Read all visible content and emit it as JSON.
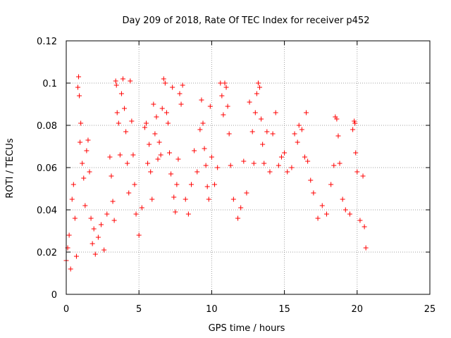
{
  "chart_data": {
    "type": "scatter",
    "title": "Day 209 of 2018, Rate Of TEC Index for receiver p452",
    "xlabel": "GPS time / hours",
    "ylabel": "ROTI / TECUs",
    "xlim": [
      0,
      25
    ],
    "ylim": [
      0,
      0.12
    ],
    "xticks": [
      0,
      5,
      10,
      15,
      20,
      25
    ],
    "xtick_labels": [
      "0",
      "5",
      "10",
      "15",
      "20",
      "25"
    ],
    "yticks": [
      0,
      0.02,
      0.04,
      0.06,
      0.08,
      0.1,
      0.12
    ],
    "ytick_labels": [
      "0",
      "0.02",
      "0.04",
      "0.06",
      "0.08",
      "0.1",
      "0.12"
    ],
    "grid": true,
    "marker": "plus",
    "color": "#ff0000",
    "series": [
      {
        "values": [
          [
            0.0,
            0.016
          ],
          [
            0.1,
            0.022
          ],
          [
            0.2,
            0.028
          ],
          [
            0.3,
            0.012
          ],
          [
            0.4,
            0.045
          ],
          [
            0.5,
            0.052
          ],
          [
            0.6,
            0.036
          ],
          [
            0.7,
            0.018
          ],
          [
            0.8,
            0.098
          ],
          [
            0.85,
            0.103
          ],
          [
            0.9,
            0.094
          ],
          [
            0.95,
            0.072
          ],
          [
            1.0,
            0.081
          ],
          [
            1.1,
            0.062
          ],
          [
            1.2,
            0.055
          ],
          [
            1.3,
            0.042
          ],
          [
            1.4,
            0.068
          ],
          [
            1.5,
            0.073
          ],
          [
            1.6,
            0.058
          ],
          [
            1.7,
            0.036
          ],
          [
            1.8,
            0.024
          ],
          [
            1.9,
            0.031
          ],
          [
            2.0,
            0.019
          ],
          [
            2.2,
            0.027
          ],
          [
            2.4,
            0.033
          ],
          [
            2.6,
            0.021
          ],
          [
            2.8,
            0.038
          ],
          [
            3.0,
            0.065
          ],
          [
            3.1,
            0.056
          ],
          [
            3.2,
            0.044
          ],
          [
            3.3,
            0.035
          ],
          [
            3.4,
            0.101
          ],
          [
            3.45,
            0.099
          ],
          [
            3.5,
            0.086
          ],
          [
            3.6,
            0.081
          ],
          [
            3.7,
            0.066
          ],
          [
            3.8,
            0.095
          ],
          [
            3.9,
            0.102
          ],
          [
            4.0,
            0.088
          ],
          [
            4.1,
            0.077
          ],
          [
            4.2,
            0.062
          ],
          [
            4.3,
            0.048
          ],
          [
            4.4,
            0.101
          ],
          [
            4.5,
            0.082
          ],
          [
            4.6,
            0.066
          ],
          [
            4.7,
            0.052
          ],
          [
            4.8,
            0.038
          ],
          [
            5.0,
            0.028
          ],
          [
            5.2,
            0.041
          ],
          [
            5.4,
            0.079
          ],
          [
            5.5,
            0.081
          ],
          [
            5.6,
            0.062
          ],
          [
            5.7,
            0.071
          ],
          [
            5.8,
            0.058
          ],
          [
            5.9,
            0.045
          ],
          [
            6.0,
            0.09
          ],
          [
            6.1,
            0.076
          ],
          [
            6.2,
            0.084
          ],
          [
            6.3,
            0.064
          ],
          [
            6.4,
            0.072
          ],
          [
            6.5,
            0.066
          ],
          [
            6.6,
            0.088
          ],
          [
            6.7,
            0.102
          ],
          [
            6.8,
            0.1
          ],
          [
            6.9,
            0.086
          ],
          [
            7.0,
            0.081
          ],
          [
            7.1,
            0.067
          ],
          [
            7.2,
            0.057
          ],
          [
            7.3,
            0.098
          ],
          [
            7.4,
            0.046
          ],
          [
            7.5,
            0.039
          ],
          [
            7.6,
            0.052
          ],
          [
            7.7,
            0.064
          ],
          [
            7.8,
            0.095
          ],
          [
            7.9,
            0.09
          ],
          [
            8.0,
            0.099
          ],
          [
            8.2,
            0.045
          ],
          [
            8.4,
            0.038
          ],
          [
            8.6,
            0.052
          ],
          [
            8.8,
            0.068
          ],
          [
            9.0,
            0.058
          ],
          [
            9.2,
            0.078
          ],
          [
            9.3,
            0.092
          ],
          [
            9.4,
            0.081
          ],
          [
            9.5,
            0.069
          ],
          [
            9.6,
            0.061
          ],
          [
            9.7,
            0.051
          ],
          [
            9.8,
            0.045
          ],
          [
            9.9,
            0.089
          ],
          [
            10.0,
            0.065
          ],
          [
            10.2,
            0.052
          ],
          [
            10.4,
            0.06
          ],
          [
            10.6,
            0.1
          ],
          [
            10.7,
            0.094
          ],
          [
            10.8,
            0.085
          ],
          [
            10.9,
            0.1
          ],
          [
            11.0,
            0.098
          ],
          [
            11.1,
            0.089
          ],
          [
            11.2,
            0.076
          ],
          [
            11.3,
            0.061
          ],
          [
            11.5,
            0.045
          ],
          [
            11.8,
            0.036
          ],
          [
            12.0,
            0.041
          ],
          [
            12.2,
            0.063
          ],
          [
            12.4,
            0.048
          ],
          [
            12.6,
            0.091
          ],
          [
            12.8,
            0.077
          ],
          [
            12.9,
            0.062
          ],
          [
            13.0,
            0.086
          ],
          [
            13.1,
            0.095
          ],
          [
            13.2,
            0.1
          ],
          [
            13.3,
            0.098
          ],
          [
            13.4,
            0.083
          ],
          [
            13.5,
            0.071
          ],
          [
            13.6,
            0.062
          ],
          [
            13.8,
            0.077
          ],
          [
            14.0,
            0.058
          ],
          [
            14.2,
            0.076
          ],
          [
            14.4,
            0.086
          ],
          [
            14.6,
            0.061
          ],
          [
            14.8,
            0.065
          ],
          [
            15.0,
            0.067
          ],
          [
            15.2,
            0.058
          ],
          [
            15.5,
            0.06
          ],
          [
            15.7,
            0.076
          ],
          [
            15.9,
            0.072
          ],
          [
            16.0,
            0.08
          ],
          [
            16.2,
            0.078
          ],
          [
            16.4,
            0.065
          ],
          [
            16.5,
            0.086
          ],
          [
            16.6,
            0.063
          ],
          [
            16.8,
            0.054
          ],
          [
            17.0,
            0.048
          ],
          [
            17.3,
            0.036
          ],
          [
            17.6,
            0.042
          ],
          [
            17.9,
            0.038
          ],
          [
            18.2,
            0.052
          ],
          [
            18.4,
            0.061
          ],
          [
            18.5,
            0.084
          ],
          [
            18.6,
            0.083
          ],
          [
            18.7,
            0.075
          ],
          [
            18.8,
            0.062
          ],
          [
            19.0,
            0.045
          ],
          [
            19.2,
            0.04
          ],
          [
            19.5,
            0.038
          ],
          [
            19.7,
            0.078
          ],
          [
            19.8,
            0.082
          ],
          [
            19.85,
            0.081
          ],
          [
            19.9,
            0.067
          ],
          [
            20.0,
            0.058
          ],
          [
            20.2,
            0.035
          ],
          [
            20.4,
            0.056
          ],
          [
            20.5,
            0.032
          ],
          [
            20.6,
            0.022
          ]
        ]
      }
    ]
  }
}
